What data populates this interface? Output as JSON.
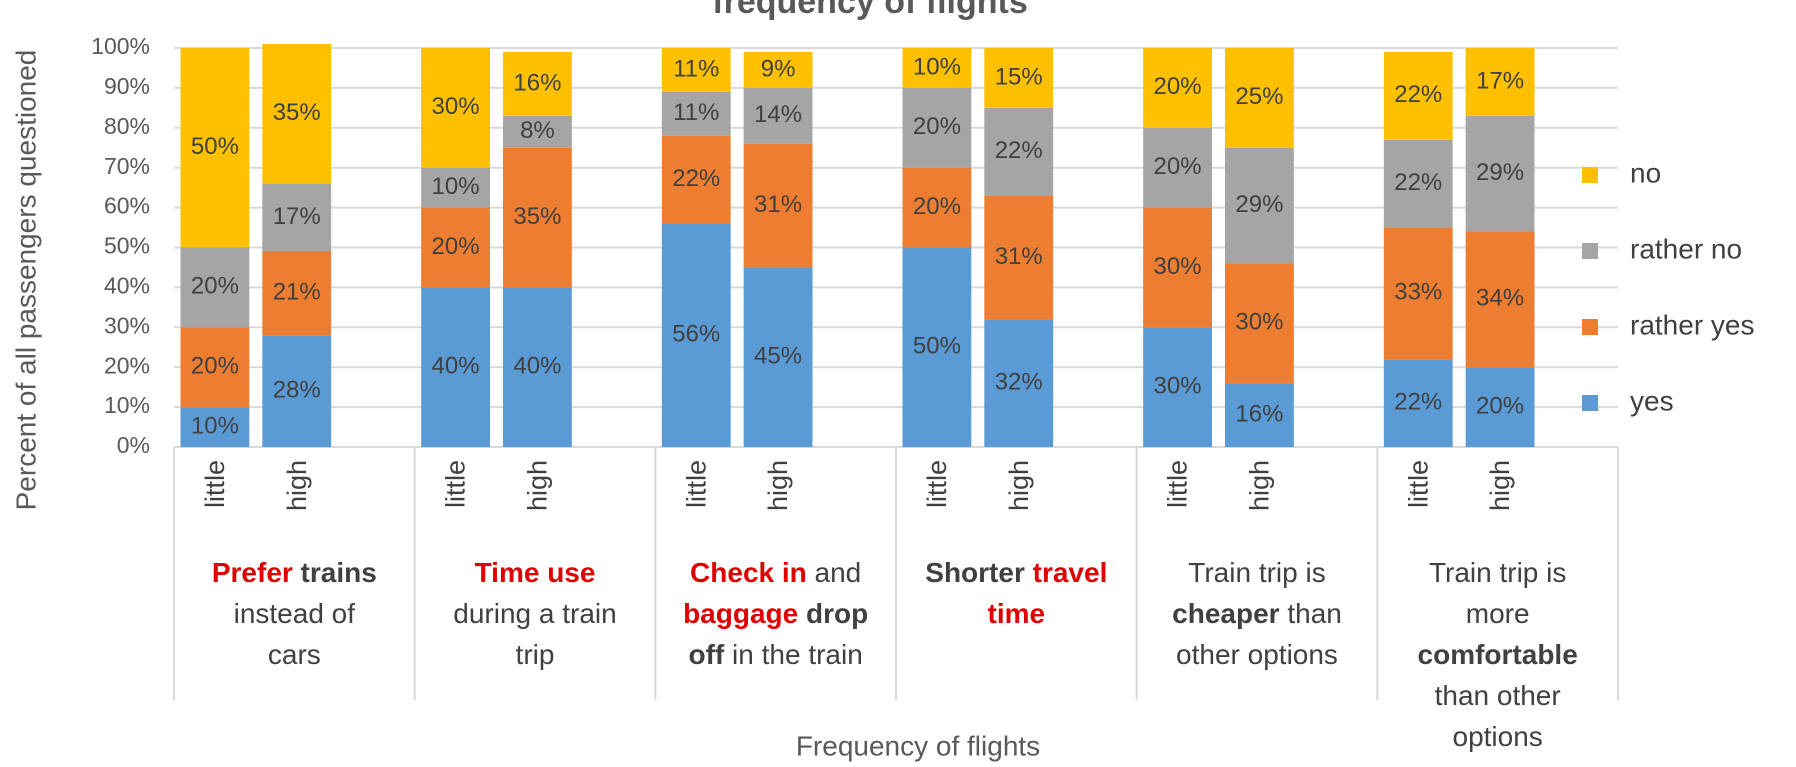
{
  "chart_data": {
    "type": "stacked-bar",
    "title": "frequency of flights",
    "y_label": "Percent of all passengers questioned",
    "x_label": "Frequency of flights",
    "categories": [
      "little",
      "high",
      "little",
      "high",
      "little",
      "high",
      "little",
      "high",
      "little",
      "high",
      "little",
      "high"
    ],
    "groups": [
      {
        "lines": [
          [
            {
              "text": "Prefer",
              "style": "red"
            },
            {
              "text": " trains",
              "style": "bold"
            }
          ],
          [
            {
              "text": "instead of",
              "style": "plain"
            }
          ],
          [
            {
              "text": "cars",
              "style": "plain"
            }
          ]
        ]
      },
      {
        "lines": [
          [
            {
              "text": "Time use",
              "style": "red"
            }
          ],
          [
            {
              "text": "during a train",
              "style": "plain"
            }
          ],
          [
            {
              "text": "trip",
              "style": "plain"
            }
          ]
        ]
      },
      {
        "lines": [
          [
            {
              "text": "Check in",
              "style": "red"
            },
            {
              "text": " and",
              "style": "plain"
            }
          ],
          [
            {
              "text": "baggage",
              "style": "red"
            },
            {
              "text": " drop",
              "style": "bold"
            }
          ],
          [
            {
              "text": "off",
              "style": "bold"
            },
            {
              "text": " in the train",
              "style": "plain"
            }
          ]
        ]
      },
      {
        "lines": [
          [
            {
              "text": "Shorter",
              "style": "bold"
            },
            {
              "text": " travel",
              "style": "red"
            }
          ],
          [
            {
              "text": "time",
              "style": "red"
            }
          ]
        ]
      },
      {
        "lines": [
          [
            {
              "text": "Train trip is",
              "style": "plain"
            }
          ],
          [
            {
              "text": "cheaper",
              "style": "bold"
            },
            {
              "text": " than",
              "style": "plain"
            }
          ],
          [
            {
              "text": "other options",
              "style": "plain"
            }
          ]
        ]
      },
      {
        "lines": [
          [
            {
              "text": "Train trip is",
              "style": "plain"
            }
          ],
          [
            {
              "text": "more",
              "style": "plain"
            }
          ],
          [
            {
              "text": "comfortable",
              "style": "bold"
            }
          ],
          [
            {
              "text": "than other",
              "style": "plain"
            }
          ],
          [
            {
              "text": "options",
              "style": "plain"
            }
          ]
        ]
      }
    ],
    "series": [
      {
        "name": "yes",
        "color": "#5b9bd5",
        "values": [
          10,
          28,
          40,
          40,
          56,
          45,
          50,
          32,
          30,
          16,
          22,
          20
        ],
        "value_labels": [
          "10%",
          "28%",
          "40%",
          "40%",
          "56%",
          "45%",
          "50%",
          "32%",
          "30%",
          "16%",
          "22%",
          "20%"
        ]
      },
      {
        "name": "rather yes",
        "color": "#ed7d31",
        "values": [
          20,
          21,
          20,
          35,
          22,
          31,
          20,
          31,
          30,
          30,
          33,
          34
        ],
        "value_labels": [
          "20%",
          "21%",
          "20%",
          "35%",
          "22%",
          "31%",
          "20%",
          "31%",
          "30%",
          "30%",
          "33%",
          "34%"
        ]
      },
      {
        "name": "rather no",
        "color": "#a5a5a5",
        "values": [
          20,
          17,
          10,
          8,
          11,
          14,
          20,
          22,
          20,
          29,
          22,
          29
        ],
        "value_labels": [
          "20%",
          "17%",
          "10%",
          "8%",
          "11%",
          "14%",
          "20%",
          "22%",
          "20%",
          "29%",
          "22%",
          "29%"
        ]
      },
      {
        "name": "no",
        "color": "#ffc000",
        "values": [
          50,
          35,
          30,
          16,
          11,
          9,
          10,
          15,
          20,
          25,
          22,
          17
        ],
        "value_labels": [
          "50%",
          "35%",
          "30%",
          "16%",
          "11%",
          "9%",
          "10%",
          "15%",
          "20%",
          "25%",
          "22%",
          "17%"
        ]
      }
    ],
    "ylim": [
      0,
      100
    ],
    "yticks": [
      {
        "value": 0,
        "label": "0%"
      },
      {
        "value": 10,
        "label": "10%"
      },
      {
        "value": 20,
        "label": "20%"
      },
      {
        "value": 30,
        "label": "30%"
      },
      {
        "value": 40,
        "label": "40%"
      },
      {
        "value": 50,
        "label": "50%"
      },
      {
        "value": 60,
        "label": "60%"
      },
      {
        "value": 70,
        "label": "70%"
      },
      {
        "value": 80,
        "label": "80%"
      },
      {
        "value": 90,
        "label": "90%"
      },
      {
        "value": 100,
        "label": "100%"
      }
    ],
    "grid": true,
    "legend": "right"
  }
}
